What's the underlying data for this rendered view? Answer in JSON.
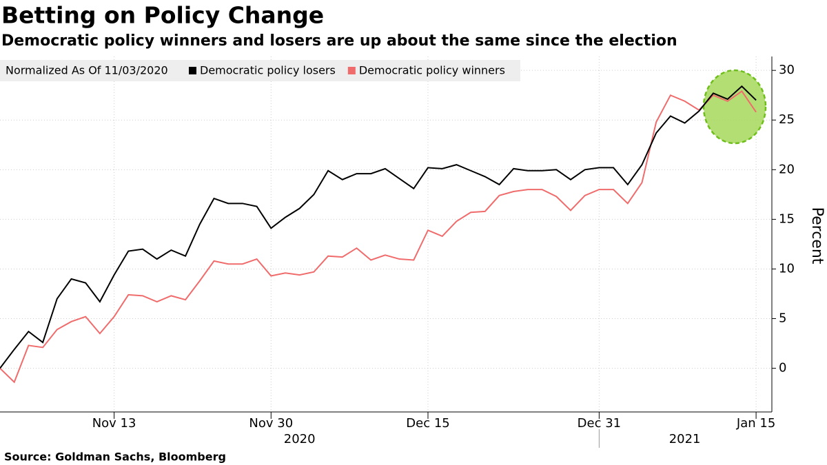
{
  "chart_data": {
    "type": "line",
    "title": "Betting on Policy Change",
    "subtitle": "Democratic policy winners and losers are up about the same since the election",
    "legend_title": "Normalized As Of 11/03/2020",
    "y_label": "Percent",
    "source": "Source: Goldman Sachs, Bloomberg",
    "x": [
      "2020-11-03",
      "2020-11-04",
      "2020-11-05",
      "2020-11-06",
      "2020-11-09",
      "2020-11-10",
      "2020-11-11",
      "2020-11-12",
      "2020-11-13",
      "2020-11-16",
      "2020-11-17",
      "2020-11-18",
      "2020-11-19",
      "2020-11-20",
      "2020-11-23",
      "2020-11-24",
      "2020-11-25",
      "2020-11-26",
      "2020-11-27",
      "2020-11-30",
      "2020-12-01",
      "2020-12-02",
      "2020-12-03",
      "2020-12-04",
      "2020-12-07",
      "2020-12-08",
      "2020-12-09",
      "2020-12-10",
      "2020-12-11",
      "2020-12-14",
      "2020-12-15",
      "2020-12-16",
      "2020-12-17",
      "2020-12-18",
      "2020-12-21",
      "2020-12-22",
      "2020-12-23",
      "2020-12-24",
      "2020-12-25",
      "2020-12-28",
      "2020-12-29",
      "2020-12-30",
      "2020-12-31",
      "2021-01-01",
      "2021-01-04",
      "2021-01-05",
      "2021-01-06",
      "2021-01-07",
      "2021-01-08",
      "2021-01-11",
      "2021-01-12",
      "2021-01-13",
      "2021-01-14",
      "2021-01-15"
    ],
    "series": [
      {
        "name": "Democratic policy losers",
        "color": "#000000",
        "values": [
          0,
          1.9,
          3.7,
          2.6,
          7.0,
          9.0,
          8.6,
          6.7,
          9.4,
          11.8,
          12.0,
          11.0,
          11.9,
          11.3,
          14.5,
          17.1,
          16.6,
          16.6,
          16.3,
          14.1,
          15.2,
          16.1,
          17.5,
          19.9,
          19.0,
          19.6,
          19.6,
          20.1,
          19.1,
          18.1,
          20.2,
          20.1,
          20.5,
          19.9,
          19.3,
          18.5,
          20.1,
          19.9,
          19.9,
          20.0,
          19.0,
          20.0,
          20.2,
          20.2,
          18.5,
          20.5,
          23.7,
          25.4,
          24.7,
          25.9,
          27.7,
          27.1,
          28.4,
          27.0
        ]
      },
      {
        "name": "Democratic policy winners",
        "color": "#f06b6b",
        "values": [
          0,
          -1.4,
          2.3,
          2.1,
          3.9,
          4.7,
          5.2,
          3.5,
          5.2,
          7.4,
          7.3,
          6.7,
          7.3,
          6.9,
          8.8,
          10.8,
          10.5,
          10.5,
          11.0,
          9.3,
          9.6,
          9.4,
          9.7,
          11.3,
          11.2,
          12.1,
          10.9,
          11.4,
          11.0,
          10.9,
          13.9,
          13.3,
          14.8,
          15.7,
          15.8,
          17.4,
          17.8,
          18.0,
          18.0,
          17.3,
          15.9,
          17.4,
          18.0,
          18.0,
          16.6,
          18.7,
          24.8,
          27.5,
          26.9,
          26.0,
          27.5,
          26.9,
          27.9,
          25.8
        ]
      }
    ],
    "xticks": [
      {
        "value": "2020-11-13",
        "label": "Nov 13"
      },
      {
        "value": "2020-11-30",
        "label": "Nov 30"
      },
      {
        "value": "2020-12-15",
        "label": "Dec 15"
      },
      {
        "value": "2020-12-31",
        "label": "Dec 31"
      },
      {
        "value": "2021-01-15",
        "label": "Jan 15"
      }
    ],
    "year_labels": [
      "2020",
      "2021"
    ],
    "ylim": [
      -4.4,
      31.4
    ],
    "yticks": [
      0,
      5,
      10,
      15,
      20,
      25,
      30
    ],
    "grid": true
  }
}
